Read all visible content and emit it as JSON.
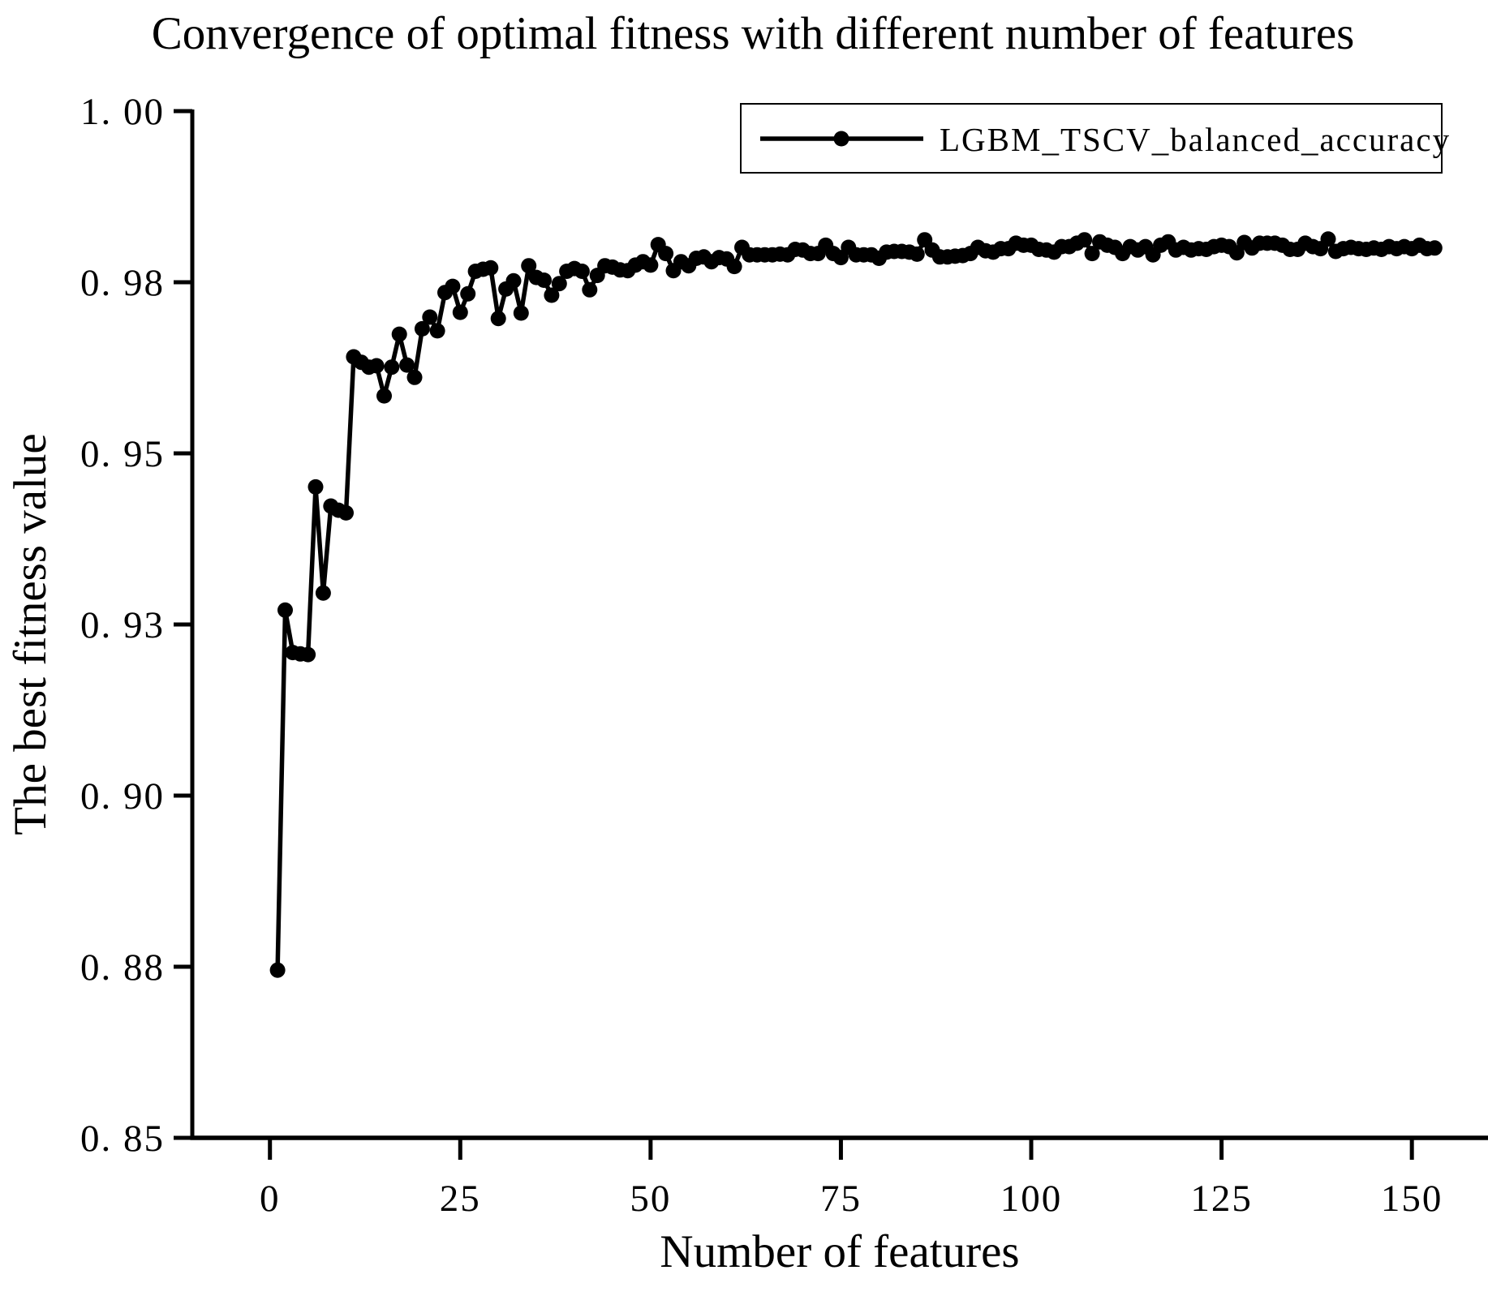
{
  "page": {
    "background": "#ffffff",
    "foreground": "#000000"
  },
  "chart_data": {
    "type": "line",
    "title": "Convergence of optimal fitness with different number of features",
    "xlabel": "Number of features",
    "ylabel": "The best fitness value",
    "grid": false,
    "line_color": "#000000",
    "marker": "circle",
    "legend": {
      "position": "upper right",
      "entries": [
        "LGBM_TSCV_balanced_accuracy"
      ]
    },
    "xlim": [
      -10.2,
      160
    ],
    "ylim": [
      0.85,
      1.0
    ],
    "xticks": {
      "values": [
        0,
        25,
        50,
        75,
        100,
        125,
        150
      ],
      "labels": [
        "0",
        "25",
        "50",
        "75",
        "100",
        "125",
        "150"
      ]
    },
    "yticks": {
      "values": [
        1.0,
        0.975,
        0.95,
        0.925,
        0.9,
        0.875,
        0.85
      ],
      "labels": [
        "1. 00",
        "0. 98",
        "0. 95",
        "0. 93",
        "0. 90",
        "0. 88",
        "0. 85"
      ]
    },
    "series": [
      {
        "name": "LGBM_TSCV_balanced_accuracy",
        "x": [
          1,
          2,
          3,
          4,
          5,
          6,
          7,
          8,
          9,
          10,
          11,
          12,
          13,
          14,
          15,
          16,
          17,
          18,
          19,
          20,
          21,
          22,
          23,
          24,
          25,
          26,
          27,
          28,
          29,
          30,
          31,
          32,
          33,
          34,
          35,
          36,
          37,
          38,
          39,
          40,
          41,
          42,
          43,
          44,
          45,
          46,
          47,
          48,
          49,
          50,
          51,
          52,
          53,
          54,
          55,
          56,
          57,
          58,
          59,
          60,
          61,
          62,
          63,
          64,
          65,
          66,
          67,
          68,
          69,
          70,
          71,
          72,
          73,
          74,
          75,
          76,
          77,
          78,
          79,
          80,
          81,
          82,
          83,
          84,
          85,
          86,
          87,
          88,
          89,
          90,
          91,
          92,
          93,
          94,
          95,
          96,
          97,
          98,
          99,
          100,
          101,
          102,
          103,
          104,
          105,
          106,
          107,
          108,
          109,
          110,
          111,
          112,
          113,
          114,
          115,
          116,
          117,
          118,
          119,
          120,
          121,
          122,
          123,
          124,
          125,
          126,
          127,
          128,
          129,
          130,
          131,
          132,
          133,
          134,
          135,
          136,
          137,
          138,
          139,
          140,
          141,
          142,
          143,
          144,
          145,
          146,
          147,
          148,
          149,
          150,
          151,
          152,
          153
        ],
        "y": [
          0.8745,
          0.9271,
          0.9209,
          0.9207,
          0.9206,
          0.9451,
          0.9296,
          0.9423,
          0.9417,
          0.9413,
          0.9641,
          0.9633,
          0.9626,
          0.9628,
          0.9584,
          0.9626,
          0.9674,
          0.9629,
          0.9611,
          0.9682,
          0.9699,
          0.9679,
          0.9735,
          0.9744,
          0.9706,
          0.9733,
          0.9766,
          0.9769,
          0.9771,
          0.9697,
          0.974,
          0.9752,
          0.9705,
          0.9774,
          0.9757,
          0.9753,
          0.9731,
          0.9748,
          0.9766,
          0.977,
          0.9766,
          0.9739,
          0.976,
          0.9774,
          0.9772,
          0.9768,
          0.9767,
          0.9775,
          0.978,
          0.9775,
          0.9805,
          0.9792,
          0.9767,
          0.978,
          0.9774,
          0.9785,
          0.9787,
          0.978,
          0.9786,
          0.9784,
          0.9773,
          0.9801,
          0.979,
          0.979,
          0.979,
          0.979,
          0.9791,
          0.979,
          0.9798,
          0.9797,
          0.9792,
          0.9792,
          0.9804,
          0.9792,
          0.9786,
          0.9801,
          0.979,
          0.979,
          0.979,
          0.9785,
          0.9794,
          0.9795,
          0.9795,
          0.9794,
          0.9791,
          0.9812,
          0.9797,
          0.9787,
          0.9787,
          0.9788,
          0.9789,
          0.9792,
          0.9801,
          0.9796,
          0.9794,
          0.9799,
          0.9799,
          0.9807,
          0.9804,
          0.9804,
          0.9798,
          0.9797,
          0.9794,
          0.9802,
          0.9802,
          0.9807,
          0.9812,
          0.9792,
          0.9809,
          0.9804,
          0.9801,
          0.9792,
          0.9802,
          0.9797,
          0.9802,
          0.979,
          0.9804,
          0.9809,
          0.9797,
          0.9801,
          0.9797,
          0.9799,
          0.9798,
          0.9802,
          0.9804,
          0.9802,
          0.9793,
          0.9808,
          0.98,
          0.9807,
          0.9807,
          0.9807,
          0.9804,
          0.9798,
          0.9798,
          0.9807,
          0.9802,
          0.9799,
          0.9813,
          0.9795,
          0.9799,
          0.9801,
          0.9799,
          0.9798,
          0.98,
          0.9798,
          0.9802,
          0.9799,
          0.9802,
          0.9799,
          0.9804,
          0.9799,
          0.98
        ]
      }
    ]
  }
}
